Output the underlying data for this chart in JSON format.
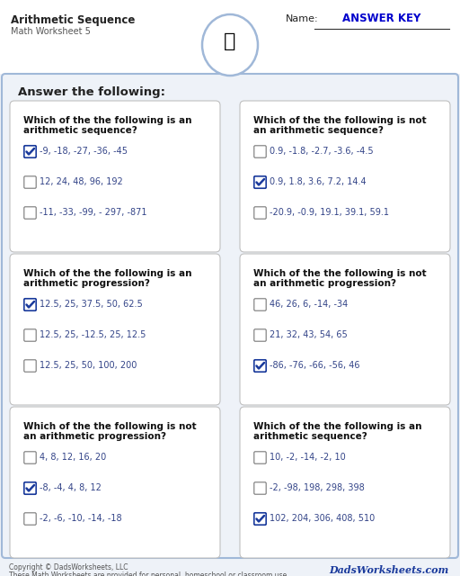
{
  "title": "Arithmetic Sequence",
  "subtitle": "Math Worksheet 5",
  "name_label": "Name:",
  "answer_key": "ANSWER KEY",
  "section_header": "Answer the following:",
  "bg_color": "#eef2f8",
  "outer_border_color": "#a0b8d8",
  "card_bg": "#ffffff",
  "card_border": "#bbbbbb",
  "text_color": "#222222",
  "blue_color": "#1a3a9c",
  "check_color": "#1a3a9c",
  "header_bg": "#ffffff",
  "questions": [
    {
      "question": "Which of the the following is an\narithmetic sequence?",
      "options": [
        "-9, -18, -27, -36, -45",
        "12, 24, 48, 96, 192",
        "-11, -33, -99, - 297, -871"
      ],
      "answer": 0,
      "col": 0,
      "row": 0
    },
    {
      "question": "Which of the the following is not\nan arithmetic sequence?",
      "options": [
        "0.9, -1.8, -2.7, -3.6, -4.5",
        "0.9, 1.8, 3.6, 7.2, 14.4",
        "-20.9, -0.9, 19.1, 39.1, 59.1"
      ],
      "answer": 1,
      "col": 1,
      "row": 0
    },
    {
      "question": "Which of the the following is an\narithmetic progression?",
      "options": [
        "12.5, 25, 37.5, 50, 62.5",
        "12.5, 25, -12.5, 25, 12.5",
        "12.5, 25, 50, 100, 200"
      ],
      "answer": 0,
      "col": 0,
      "row": 1
    },
    {
      "question": "Which of the the following is not\nan arithmetic progression?",
      "options": [
        "46, 26, 6, -14, -34",
        "21, 32, 43, 54, 65",
        "-86, -76, -66, -56, 46"
      ],
      "answer": 2,
      "col": 1,
      "row": 1
    },
    {
      "question": "Which of the the following is not\nan arithmetic progression?",
      "options": [
        "4, 8, 12, 16, 20",
        "-8, -4, 4, 8, 12",
        "-2, -6, -10, -14, -18"
      ],
      "answer": 1,
      "col": 0,
      "row": 2
    },
    {
      "question": "Which of the the following is an\narithmetic sequence?",
      "options": [
        "10, -2, -14, -2, 10",
        "-2, -98, 198, 298, 398",
        "102, 204, 306, 408, 510"
      ],
      "answer": 2,
      "col": 1,
      "row": 2
    }
  ],
  "footer_left": "Copyright © DadsWorksheets, LLC",
  "footer_left2": "These Math Worksheets are provided for personal, homeschool or classroom use.",
  "footer_brand": "DadsWorksheets.com"
}
